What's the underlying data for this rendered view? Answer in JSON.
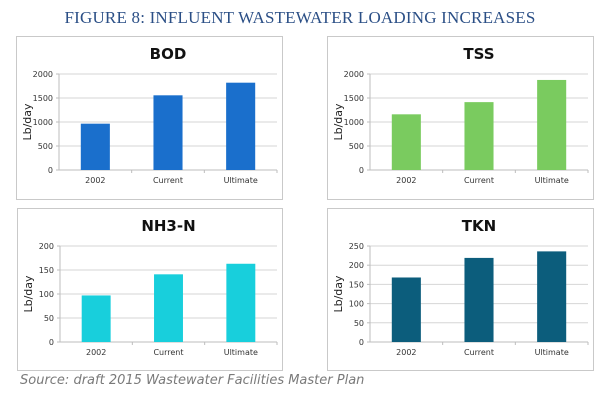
{
  "figure": {
    "title": "FIGURE 8: INFLUENT WASTEWATER LOADING INCREASES",
    "caption": "Source: draft 2015 Wastewater Facilities Master Plan"
  },
  "chart_data": [
    {
      "type": "bar",
      "title": "BOD",
      "categories": [
        "2002",
        "Current",
        "Ultimate"
      ],
      "values": [
        965,
        1556,
        1819
      ],
      "xlabel": "",
      "ylabel": "Lb/day",
      "ylim": [
        0,
        2000
      ],
      "yticks": [
        0,
        500,
        1000,
        1500,
        2000
      ],
      "grid": true,
      "color": "#1a6fcc"
    },
    {
      "type": "bar",
      "title": "TSS",
      "categories": [
        "2002",
        "Current",
        "Ultimate"
      ],
      "values": [
        1160,
        1414,
        1876
      ],
      "xlabel": "",
      "ylabel": "Lb/day",
      "ylim": [
        0,
        2000
      ],
      "yticks": [
        0,
        500,
        1000,
        1500,
        2000
      ],
      "grid": true,
      "color": "#7acb5f"
    },
    {
      "type": "bar",
      "title": "NH3-N",
      "categories": [
        "2002",
        "Current",
        "Ultimate"
      ],
      "values": [
        97,
        141,
        163
      ],
      "xlabel": "",
      "ylabel": "Lb/day",
      "ylim": [
        0,
        200
      ],
      "yticks": [
        0,
        50,
        100,
        150,
        200
      ],
      "grid": true,
      "color": "#18cfdc"
    },
    {
      "type": "bar",
      "title": "TKN",
      "categories": [
        "2002",
        "Current",
        "Ultimate"
      ],
      "values": [
        168,
        219,
        236
      ],
      "xlabel": "",
      "ylabel": "Lb/day",
      "ylim": [
        0,
        250
      ],
      "yticks": [
        0,
        50,
        100,
        150,
        200,
        250
      ],
      "grid": true,
      "color": "#0c5d7c"
    }
  ]
}
